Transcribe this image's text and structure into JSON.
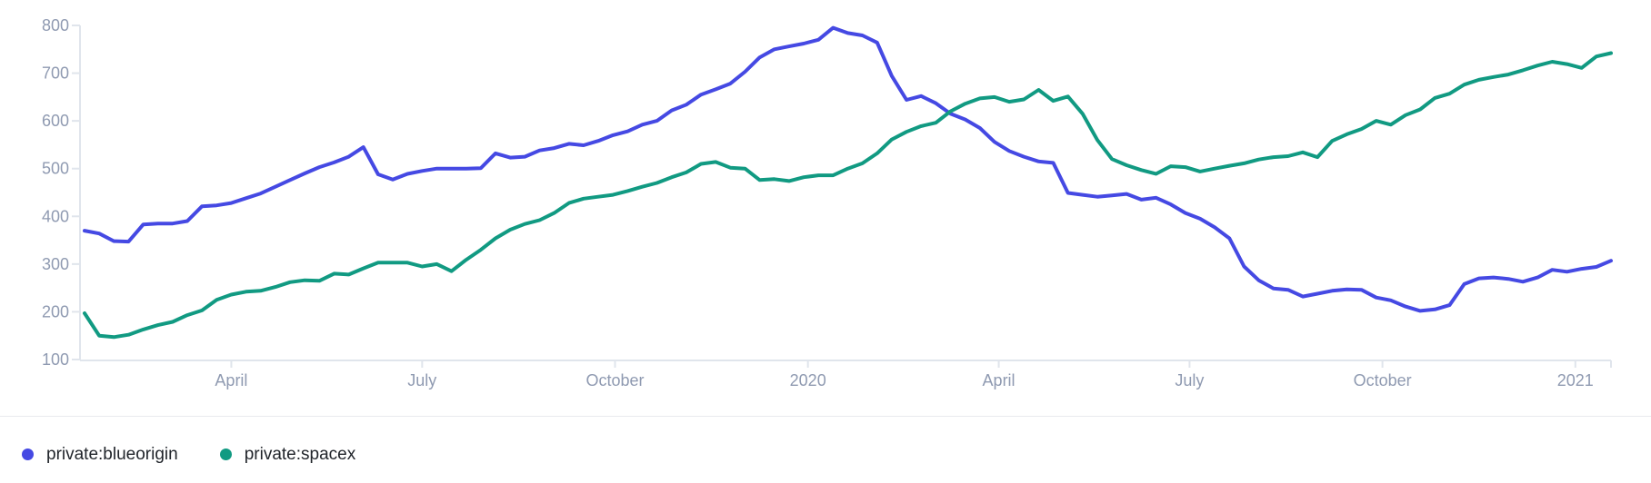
{
  "legend": {
    "items": [
      {
        "label": "private:blueorigin",
        "color": "#4549e3"
      },
      {
        "label": "private:spacex",
        "color": "#119a82"
      }
    ]
  },
  "colors": {
    "axis_line": "#e0e5ec",
    "tick_label": "#8f9ab1",
    "legend_text": "#21252b",
    "background": "#ffffff"
  },
  "chart_data": {
    "type": "line",
    "title": "",
    "xlabel": "",
    "ylabel": "",
    "grid": false,
    "legend_position": "bottom",
    "ylim": [
      100,
      800
    ],
    "y_ticks": [
      100,
      200,
      300,
      400,
      500,
      600,
      700,
      800
    ],
    "x_ticks": [
      {
        "label": "April",
        "date": "2019-04-01"
      },
      {
        "label": "July",
        "date": "2019-07-01"
      },
      {
        "label": "October",
        "date": "2019-10-01"
      },
      {
        "label": "2020",
        "date": "2020-01-01"
      },
      {
        "label": "April",
        "date": "2020-04-01"
      },
      {
        "label": "July",
        "date": "2020-07-01"
      },
      {
        "label": "October",
        "date": "2020-10-01"
      },
      {
        "label": "2021",
        "date": "2021-01-01"
      }
    ],
    "x": [
      "2019-01-21",
      "2019-01-28",
      "2019-02-04",
      "2019-02-11",
      "2019-02-18",
      "2019-02-25",
      "2019-03-04",
      "2019-03-11",
      "2019-03-18",
      "2019-03-25",
      "2019-04-01",
      "2019-04-08",
      "2019-04-15",
      "2019-04-22",
      "2019-04-29",
      "2019-05-06",
      "2019-05-13",
      "2019-05-20",
      "2019-05-27",
      "2019-06-03",
      "2019-06-10",
      "2019-06-17",
      "2019-06-24",
      "2019-07-01",
      "2019-07-08",
      "2019-07-15",
      "2019-07-22",
      "2019-07-29",
      "2019-08-05",
      "2019-08-12",
      "2019-08-19",
      "2019-08-26",
      "2019-09-02",
      "2019-09-09",
      "2019-09-16",
      "2019-09-23",
      "2019-09-30",
      "2019-10-07",
      "2019-10-14",
      "2019-10-21",
      "2019-10-28",
      "2019-11-04",
      "2019-11-11",
      "2019-11-18",
      "2019-11-25",
      "2019-12-02",
      "2019-12-09",
      "2019-12-16",
      "2019-12-23",
      "2019-12-30",
      "2020-01-06",
      "2020-01-13",
      "2020-01-20",
      "2020-01-27",
      "2020-02-03",
      "2020-02-10",
      "2020-02-17",
      "2020-02-24",
      "2020-03-02",
      "2020-03-09",
      "2020-03-16",
      "2020-03-23",
      "2020-03-30",
      "2020-04-06",
      "2020-04-13",
      "2020-04-20",
      "2020-04-27",
      "2020-05-04",
      "2020-05-11",
      "2020-05-18",
      "2020-05-25",
      "2020-06-01",
      "2020-06-08",
      "2020-06-15",
      "2020-06-22",
      "2020-06-29",
      "2020-07-06",
      "2020-07-13",
      "2020-07-20",
      "2020-07-27",
      "2020-08-03",
      "2020-08-10",
      "2020-08-17",
      "2020-08-24",
      "2020-08-31",
      "2020-09-07",
      "2020-09-14",
      "2020-09-21",
      "2020-09-28",
      "2020-10-05",
      "2020-10-12",
      "2020-10-19",
      "2020-10-26",
      "2020-11-02",
      "2020-11-09",
      "2020-11-16",
      "2020-11-23",
      "2020-11-30",
      "2020-12-07",
      "2020-12-14",
      "2020-12-21",
      "2020-12-28",
      "2021-01-04",
      "2021-01-11",
      "2021-01-18"
    ],
    "series": [
      {
        "name": "private:blueorigin",
        "color": "#4549e3",
        "values": [
          370,
          364,
          348,
          347,
          383,
          385,
          385,
          390,
          421,
          423,
          428,
          438,
          448,
          462,
          476,
          490,
          503,
          513,
          525,
          545,
          488,
          477,
          489,
          495,
          500,
          500,
          500,
          501,
          532,
          523,
          525,
          538,
          543,
          552,
          549,
          558,
          570,
          578,
          592,
          600,
          622,
          634,
          655,
          666,
          678,
          703,
          733,
          750,
          756,
          762,
          770,
          795,
          784,
          779,
          764,
          694,
          644,
          652,
          637,
          615,
          603,
          585,
          556,
          537,
          525,
          515,
          512,
          449,
          445,
          441,
          444,
          447,
          435,
          439,
          425,
          407,
          395,
          377,
          354,
          295,
          266,
          249,
          246,
          232,
          238,
          244,
          247,
          246,
          230,
          224,
          211,
          202,
          205,
          214,
          258,
          270,
          272,
          269,
          263,
          272,
          288,
          284,
          290,
          294,
          307
        ]
      },
      {
        "name": "private:spacex",
        "color": "#119a82",
        "values": [
          197,
          150,
          147,
          152,
          163,
          172,
          179,
          193,
          203,
          225,
          236,
          242,
          244,
          252,
          262,
          266,
          265,
          280,
          278,
          291,
          303,
          303,
          303,
          295,
          300,
          285,
          309,
          330,
          354,
          372,
          384,
          392,
          407,
          428,
          437,
          441,
          445,
          453,
          462,
          470,
          482,
          492,
          510,
          514,
          502,
          500,
          476,
          478,
          474,
          482,
          486,
          486,
          500,
          511,
          532,
          561,
          577,
          589,
          596,
          620,
          636,
          647,
          650,
          640,
          645,
          665,
          642,
          651,
          615,
          560,
          520,
          507,
          497,
          489,
          505,
          503,
          494,
          500,
          506,
          511,
          519,
          524,
          526,
          534,
          524,
          558,
          572,
          583,
          600,
          592,
          612,
          624,
          648,
          657,
          676,
          686,
          692,
          697,
          706,
          716,
          724,
          719,
          711,
          735,
          742
        ]
      }
    ]
  }
}
